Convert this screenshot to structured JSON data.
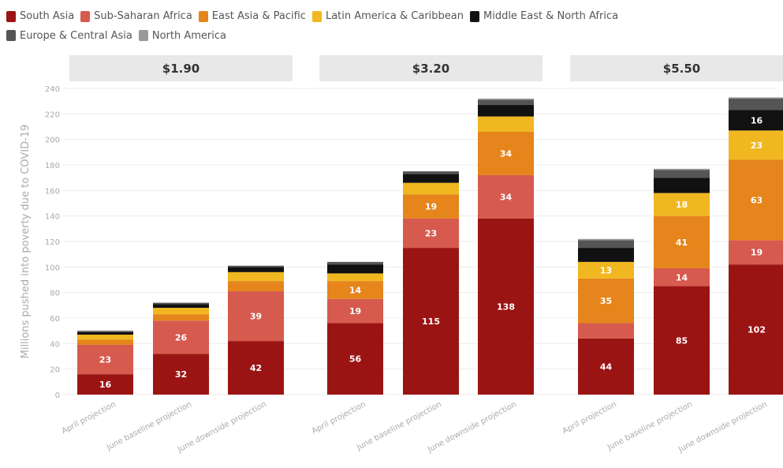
{
  "chart_data": {
    "type": "bar",
    "stacked": true,
    "ylabel": "Millions pushed into poverty due to COVID-19",
    "ylim": [
      0,
      240
    ],
    "yticks": [
      0,
      20,
      40,
      60,
      80,
      100,
      120,
      140,
      160,
      180,
      200,
      220,
      240
    ],
    "grid": true,
    "legend_position": "top-left",
    "series": [
      {
        "name": "South Asia",
        "color": "#9b1414"
      },
      {
        "name": "Sub-Saharan Africa",
        "color": "#d65a4e"
      },
      {
        "name": "East Asia & Pacific",
        "color": "#e5851c"
      },
      {
        "name": "Latin America & Caribbean",
        "color": "#f0b721"
      },
      {
        "name": "Middle East & North Africa",
        "color": "#111111"
      },
      {
        "name": "Europe & Central Asia",
        "color": "#555555"
      },
      {
        "name": "North America",
        "color": "#999999"
      }
    ],
    "categories": [
      "April projection",
      "June baseline projection",
      "June downside projection"
    ],
    "panels": [
      {
        "title": "$1.90",
        "bars": [
          {
            "values": [
              16,
              23,
              4,
              4,
              2,
              1,
              0
            ]
          },
          {
            "values": [
              32,
              26,
              5,
              5,
              3,
              1,
              0
            ]
          },
          {
            "values": [
              42,
              39,
              8,
              7,
              4,
              1,
              0
            ]
          }
        ]
      },
      {
        "title": "$3.20",
        "bars": [
          {
            "values": [
              56,
              19,
              14,
              6,
              7,
              2,
              0
            ]
          },
          {
            "values": [
              115,
              23,
              19,
              9,
              7,
              2,
              0
            ]
          },
          {
            "values": [
              138,
              34,
              34,
              12,
              9,
              4,
              1
            ]
          }
        ]
      },
      {
        "title": "$5.50",
        "bars": [
          {
            "values": [
              44,
              12,
              35,
              13,
              11,
              6,
              1
            ]
          },
          {
            "values": [
              85,
              14,
              41,
              18,
              12,
              6,
              1
            ]
          },
          {
            "values": [
              102,
              19,
              63,
              23,
              16,
              9,
              1
            ]
          }
        ]
      }
    ],
    "data_labels": [
      [
        [
          16,
          23,
          null,
          null,
          null,
          null,
          null
        ],
        [
          32,
          26,
          null,
          null,
          null,
          null,
          null
        ],
        [
          42,
          39,
          null,
          null,
          null,
          null,
          null
        ]
      ],
      [
        [
          56,
          19,
          14,
          null,
          null,
          null,
          null
        ],
        [
          115,
          23,
          19,
          null,
          null,
          null,
          null
        ],
        [
          138,
          34,
          34,
          null,
          null,
          null,
          null
        ]
      ],
      [
        [
          44,
          null,
          35,
          13,
          null,
          null,
          null
        ],
        [
          85,
          14,
          41,
          18,
          null,
          null,
          null
        ],
        [
          102,
          19,
          63,
          23,
          16,
          null,
          null
        ]
      ]
    ]
  }
}
